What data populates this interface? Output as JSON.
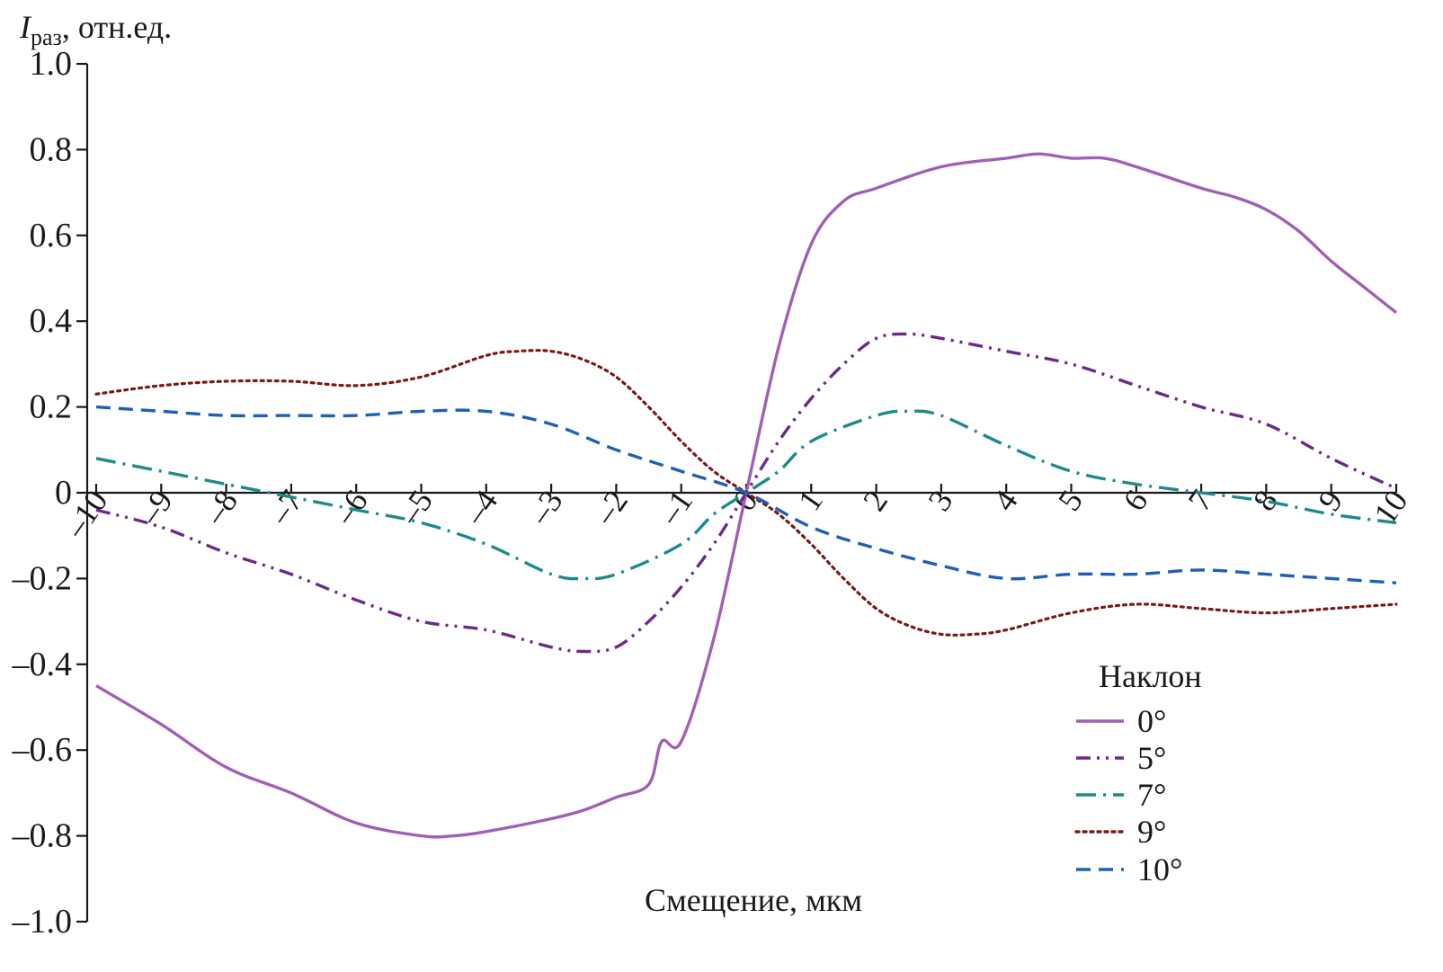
{
  "chart_data": {
    "type": "line",
    "ylabel_main": "I",
    "ylabel_sub": "раз",
    "ylabel_rest": ", отн.ед.",
    "xlabel": "Смещение, мкм",
    "xlim": [
      -10,
      10
    ],
    "ylim": [
      -1.0,
      1.0
    ],
    "y_ticks": [
      -1.0,
      -0.8,
      -0.6,
      -0.4,
      -0.2,
      0,
      0.2,
      0.4,
      0.6,
      0.8,
      1.0
    ],
    "y_tick_labels": [
      "–1.0",
      "–0.8",
      "–0.6",
      "–0.4",
      "–0.2",
      "0",
      "0.2",
      "0.4",
      "0.6",
      "0.8",
      "1.0"
    ],
    "x_ticks": [
      -10,
      -9,
      -8,
      -7,
      -6,
      -5,
      -4,
      -3,
      -2,
      -1,
      0,
      1,
      2,
      3,
      4,
      5,
      6,
      7,
      8,
      9,
      10
    ],
    "x_tick_labels": [
      "–10",
      "–9",
      "–8",
      "–7",
      "–6",
      "–5",
      "–4",
      "–3",
      "–2",
      "–1",
      "0",
      "1",
      "2",
      "3",
      "4",
      "5",
      "6",
      "7",
      "8",
      "9",
      "10"
    ],
    "legend": {
      "title": "Наклон",
      "position": "lower-right"
    },
    "series": [
      {
        "name": "0°",
        "color": "#a15fb5",
        "dash": "solid",
        "x": [
          -10,
          -9,
          -8,
          -7,
          -6,
          -5,
          -4.5,
          -4,
          -3,
          -2.5,
          -2,
          -1.5,
          -1.3,
          -1,
          -0.5,
          0,
          0.5,
          1,
          1.5,
          2,
          3,
          4,
          4.5,
          5,
          5.5,
          6,
          7,
          7.5,
          8,
          8.5,
          9,
          9.5,
          10
        ],
        "y": [
          -0.45,
          -0.54,
          -0.64,
          -0.7,
          -0.77,
          -0.8,
          -0.8,
          -0.79,
          -0.76,
          -0.74,
          -0.71,
          -0.68,
          -0.58,
          -0.58,
          -0.34,
          0,
          0.34,
          0.58,
          0.68,
          0.71,
          0.76,
          0.78,
          0.79,
          0.78,
          0.78,
          0.76,
          0.71,
          0.69,
          0.66,
          0.61,
          0.54,
          0.48,
          0.42
        ]
      },
      {
        "name": "5°",
        "color": "#6b2a8c",
        "dash": "dash-dot-dot",
        "x": [
          -10,
          -9,
          -8,
          -7,
          -6,
          -5,
          -4,
          -3,
          -2.5,
          -2,
          -1.5,
          -1,
          -0.5,
          0,
          0.5,
          1,
          1.5,
          2,
          2.5,
          3,
          4,
          5,
          6,
          7,
          8,
          9,
          10
        ],
        "y": [
          -0.04,
          -0.08,
          -0.14,
          -0.19,
          -0.25,
          -0.3,
          -0.32,
          -0.36,
          -0.37,
          -0.36,
          -0.3,
          -0.22,
          -0.12,
          0,
          0.12,
          0.22,
          0.3,
          0.36,
          0.37,
          0.36,
          0.33,
          0.3,
          0.25,
          0.2,
          0.16,
          0.08,
          0.01
        ]
      },
      {
        "name": "7°",
        "color": "#1e8a8a",
        "dash": "long-dash-dot",
        "x": [
          -10,
          -9,
          -8,
          -7,
          -6,
          -5,
          -4,
          -3,
          -2.5,
          -2,
          -1,
          -0.5,
          0,
          0.5,
          1,
          2,
          2.5,
          3,
          4,
          5,
          6,
          7,
          8,
          9,
          10
        ],
        "y": [
          0.08,
          0.05,
          0.02,
          -0.01,
          -0.04,
          -0.07,
          -0.12,
          -0.19,
          -0.2,
          -0.19,
          -0.12,
          -0.05,
          0,
          0.05,
          0.12,
          0.18,
          0.19,
          0.18,
          0.11,
          0.05,
          0.02,
          0,
          -0.02,
          -0.05,
          -0.07
        ]
      },
      {
        "name": "9°",
        "color": "#7a1a1a",
        "dash": "dotted",
        "x": [
          -10,
          -9,
          -8,
          -7,
          -6,
          -5,
          -4,
          -3.5,
          -3,
          -2.5,
          -2,
          -1.5,
          -1,
          -0.5,
          0,
          0.5,
          1,
          1.5,
          2,
          2.5,
          3,
          3.5,
          4,
          5,
          6,
          7,
          8,
          9,
          10
        ],
        "y": [
          0.23,
          0.25,
          0.26,
          0.26,
          0.25,
          0.27,
          0.32,
          0.33,
          0.33,
          0.31,
          0.27,
          0.2,
          0.12,
          0.05,
          0,
          -0.05,
          -0.12,
          -0.2,
          -0.27,
          -0.31,
          -0.33,
          -0.33,
          -0.32,
          -0.28,
          -0.26,
          -0.27,
          -0.28,
          -0.27,
          -0.26
        ]
      },
      {
        "name": "10°",
        "color": "#1f5fb5",
        "dash": "dashed",
        "x": [
          -10,
          -9,
          -8,
          -7,
          -6,
          -5,
          -4,
          -3,
          -2,
          -1,
          0,
          1,
          2,
          3,
          4,
          5,
          6,
          7,
          8,
          9,
          10
        ],
        "y": [
          0.2,
          0.19,
          0.18,
          0.18,
          0.18,
          0.19,
          0.19,
          0.16,
          0.1,
          0.05,
          0,
          -0.08,
          -0.13,
          -0.17,
          -0.2,
          -0.19,
          -0.19,
          -0.18,
          -0.19,
          -0.2,
          -0.21
        ]
      }
    ]
  }
}
